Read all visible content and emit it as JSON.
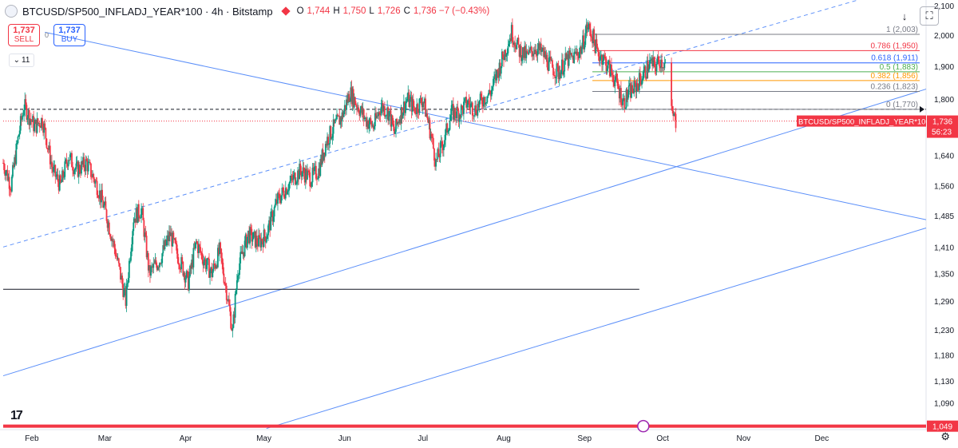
{
  "header": {
    "symbol": "BTCUSD/SP500_INFLADJ_YEAR*100 · 4h · Bitstamp",
    "o_label": "O",
    "o": "1,744",
    "h_label": "H",
    "h": "1,750",
    "l_label": "L",
    "l": "1,726",
    "c_label": "C",
    "c": "1,736 −7 (−0.43%)"
  },
  "trade": {
    "sell_price": "1,737",
    "sell_label": "SELL",
    "spread": "0",
    "buy_price": "1,737",
    "buy_label": "BUY"
  },
  "indicator_count": "11",
  "colors": {
    "up": "#089981",
    "down": "#f23645",
    "line": "#5b8ff9",
    "bg": "#ffffff"
  },
  "chart_data": {
    "type": "candlestick",
    "timeframe": "4h",
    "x_range": [
      "2023-01-21",
      "2024-01-10"
    ],
    "y_scale": "log",
    "ylim": [
      1043,
      2120
    ],
    "y_ticks": [
      "2,100",
      "2,000",
      "1,900",
      "1,800",
      "1,640",
      "1,560",
      "1,485",
      "1,410",
      "1,350",
      "1,290",
      "1,230",
      "1,180",
      "1,130",
      "1,090"
    ],
    "y_tick_values": [
      2100,
      2000,
      1900,
      1800,
      1640,
      1560,
      1485,
      1410,
      1350,
      1290,
      1230,
      1180,
      1130,
      1090
    ],
    "x_ticks": [
      "Feb",
      "Mar",
      "Apr",
      "May",
      "Jun",
      "Jul",
      "Aug",
      "Sep",
      "Oct",
      "Nov",
      "Dec"
    ],
    "x_tick_dates": [
      "2023-02-01",
      "2023-03-01",
      "2023-04-01",
      "2023-05-01",
      "2023-06-01",
      "2023-07-01",
      "2023-08-01",
      "2023-09-01",
      "2023-10-01",
      "2023-11-01",
      "2023-12-01"
    ],
    "price_path": [
      [
        "2023-01-21",
        1620
      ],
      [
        "2023-01-24",
        1560
      ],
      [
        "2023-01-27",
        1700
      ],
      [
        "2023-01-29",
        1780
      ],
      [
        "2023-02-02",
        1720
      ],
      [
        "2023-02-05",
        1740
      ],
      [
        "2023-02-09",
        1600
      ],
      [
        "2023-02-12",
        1560
      ],
      [
        "2023-02-15",
        1640
      ],
      [
        "2023-02-18",
        1600
      ],
      [
        "2023-02-22",
        1620
      ],
      [
        "2023-02-26",
        1560
      ],
      [
        "2023-03-01",
        1500
      ],
      [
        "2023-03-05",
        1400
      ],
      [
        "2023-03-09",
        1290
      ],
      [
        "2023-03-12",
        1480
      ],
      [
        "2023-03-15",
        1500
      ],
      [
        "2023-03-18",
        1350
      ],
      [
        "2023-03-22",
        1380
      ],
      [
        "2023-03-26",
        1440
      ],
      [
        "2023-03-29",
        1390
      ],
      [
        "2023-04-02",
        1330
      ],
      [
        "2023-04-05",
        1420
      ],
      [
        "2023-04-08",
        1380
      ],
      [
        "2023-04-11",
        1350
      ],
      [
        "2023-04-14",
        1400
      ],
      [
        "2023-04-17",
        1300
      ],
      [
        "2023-04-19",
        1225
      ],
      [
        "2023-04-21",
        1360
      ],
      [
        "2023-04-25",
        1440
      ],
      [
        "2023-04-29",
        1420
      ],
      [
        "2023-05-02",
        1440
      ],
      [
        "2023-05-06",
        1520
      ],
      [
        "2023-05-10",
        1560
      ],
      [
        "2023-05-15",
        1600
      ],
      [
        "2023-05-19",
        1580
      ],
      [
        "2023-05-22",
        1600
      ],
      [
        "2023-05-25",
        1680
      ],
      [
        "2023-05-28",
        1720
      ],
      [
        "2023-05-31",
        1750
      ],
      [
        "2023-06-03",
        1820
      ],
      [
        "2023-06-06",
        1780
      ],
      [
        "2023-06-09",
        1740
      ],
      [
        "2023-06-12",
        1720
      ],
      [
        "2023-06-15",
        1780
      ],
      [
        "2023-06-18",
        1760
      ],
      [
        "2023-06-20",
        1700
      ],
      [
        "2023-06-22",
        1750
      ],
      [
        "2023-06-25",
        1800
      ],
      [
        "2023-06-28",
        1770
      ],
      [
        "2023-07-01",
        1800
      ],
      [
        "2023-07-04",
        1700
      ],
      [
        "2023-07-06",
        1620
      ],
      [
        "2023-07-09",
        1680
      ],
      [
        "2023-07-12",
        1760
      ],
      [
        "2023-07-15",
        1760
      ],
      [
        "2023-07-18",
        1790
      ],
      [
        "2023-07-21",
        1770
      ],
      [
        "2023-07-24",
        1800
      ],
      [
        "2023-07-27",
        1820
      ],
      [
        "2023-07-30",
        1890
      ],
      [
        "2023-08-02",
        1960
      ],
      [
        "2023-08-04",
        2010
      ],
      [
        "2023-08-07",
        1950
      ],
      [
        "2023-08-10",
        1930
      ],
      [
        "2023-08-13",
        1960
      ],
      [
        "2023-08-16",
        1940
      ],
      [
        "2023-08-19",
        1900
      ],
      [
        "2023-08-22",
        1880
      ],
      [
        "2023-08-25",
        1920
      ],
      [
        "2023-08-28",
        1930
      ],
      [
        "2023-08-31",
        1960
      ],
      [
        "2023-09-02",
        2030
      ],
      [
        "2023-09-04",
        2000
      ],
      [
        "2023-09-06",
        1940
      ],
      [
        "2023-09-08",
        1930
      ],
      [
        "2023-09-10",
        1900
      ],
      [
        "2023-09-12",
        1870
      ],
      [
        "2023-09-14",
        1830
      ],
      [
        "2023-09-16",
        1790
      ],
      [
        "2023-09-18",
        1820
      ],
      [
        "2023-09-20",
        1830
      ],
      [
        "2023-09-22",
        1855
      ],
      [
        "2023-09-24",
        1880
      ],
      [
        "2023-09-26",
        1910
      ],
      [
        "2023-09-28",
        1900
      ],
      [
        "2023-09-30",
        1920
      ],
      [
        "2023-10-02",
        1905
      ],
      [
        "2023-10-04",
        1765
      ],
      [
        "2023-10-06",
        1736
      ]
    ],
    "fibonacci": [
      {
        "label": "1 (2,003)",
        "value": 2003,
        "color": "#787b86"
      },
      {
        "label": "0.786 (1,950)",
        "value": 1950,
        "color": "#f23645"
      },
      {
        "label": "0.618 (1,911)",
        "value": 1911,
        "color": "#2962ff"
      },
      {
        "label": "0.5 (1,883)",
        "value": 1883,
        "color": "#4caf50"
      },
      {
        "label": "0.382 (1,856)",
        "value": 1856,
        "color": "#ff9800"
      },
      {
        "label": "0.236 (1,823)",
        "value": 1823,
        "color": "#787b86"
      },
      {
        "label": "0 (1,770)",
        "value": 1770,
        "color": "#787b86"
      }
    ],
    "horizontal_lines": [
      {
        "value": 1770,
        "style": "dashed",
        "color": "#131722"
      },
      {
        "value": 1736,
        "style": "dotted",
        "color": "#f23645"
      },
      {
        "value": 1315,
        "style": "solid",
        "color": "#131722"
      },
      {
        "value": 1049,
        "style": "solid-thick",
        "color": "#f23645"
      }
    ],
    "price_tag": {
      "symbol": "BTCUSD/SP500_INFLADJ_YEAR*100",
      "value": "1,736",
      "countdown": "56:23"
    },
    "bottom_tag": "1,049"
  }
}
